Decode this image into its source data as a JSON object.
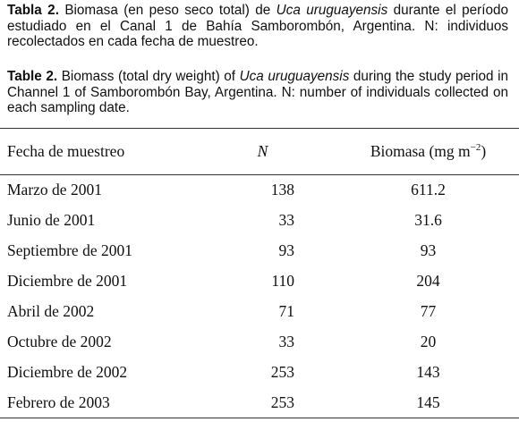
{
  "caption_es": [
    "Tabla 2.",
    " Biomasa (en peso seco total) de ",
    "Uca uruguayensis",
    " durante el período estudiado en el Canal 1 de Bahía Samborombón, Argentina. N: individuos recolectados en cada fecha de muestreo."
  ],
  "caption_en": [
    "Table 2.",
    " Biomass (total dry weight) of ",
    "Uca uruguayensis",
    " during the study period in Channel 1 of Samborombón Bay, Argentina. N: number of individuals collected on each sampling date."
  ],
  "table": {
    "header": {
      "date": "Fecha de muestreo",
      "n": "N",
      "biomass": [
        "Biomasa (mg m",
        "−2",
        ")"
      ]
    },
    "rows": [
      [
        "Marzo de 2001",
        138,
        611.2
      ],
      [
        "Junio de 2001",
        33,
        31.6
      ],
      [
        "Septiembre de 2001",
        93,
        93
      ],
      [
        "Diciembre de 2001",
        110,
        204
      ],
      [
        "Abril de 2002",
        71,
        77
      ],
      [
        "Octubre de 2002",
        33,
        20
      ],
      [
        "Diciembre de 2002",
        253,
        143
      ],
      [
        "Febrero de 2003",
        253,
        145
      ]
    ]
  }
}
